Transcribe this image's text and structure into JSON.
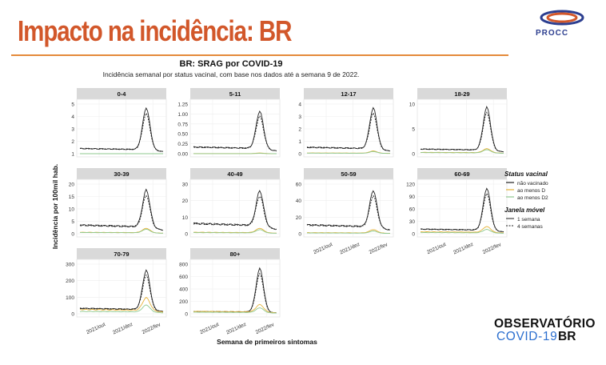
{
  "slide": {
    "title": "Impacto na incidência: BR",
    "logo_text": "PROCC",
    "branding_line1": "OBSERVATÓRIO",
    "branding_line2a": "COVID-19",
    "branding_line2b": "BR",
    "accent_color": "#d2572a"
  },
  "chart_data": {
    "type": "line",
    "title": "BR: SRAG por COVID-19",
    "subtitle": "Incidência semanal por status vacinal, com base nos dados até a semana 9 de 2022.",
    "xlabel": "Semana de primeiros sintomas",
    "ylabel": "Incidência por 100mil hab.",
    "x_ticks": [
      "2021/out",
      "2021/dez",
      "2022/fev"
    ],
    "legend": {
      "position": "right",
      "status_title": "Status vacinal",
      "status_items": [
        {
          "label": "não vacinado",
          "color": "#222222"
        },
        {
          "label": "ao menos D",
          "color": "#e6b33a"
        },
        {
          "label": "ao menos D2",
          "color": "#8fc98f"
        }
      ],
      "window_title": "Janela móvel",
      "window_items": [
        {
          "label": "1 semana",
          "dash": "solid"
        },
        {
          "label": "4 semanas",
          "dash": "dashed"
        }
      ]
    },
    "panels": [
      {
        "label": "0-4",
        "yticks": [
          "5",
          "4",
          "3",
          "2",
          "1"
        ],
        "ymax": 5.8,
        "peak": 5.5,
        "base": 0.6,
        "d1": 0,
        "d2": 0
      },
      {
        "label": "5-11",
        "yticks": [
          "1.25",
          "1.00",
          "0.75",
          "0.50",
          "0.25",
          "0.00"
        ],
        "ymax": 1.35,
        "peak": 1.2,
        "base": 0.18,
        "d1": 0.02,
        "d2": 0.01
      },
      {
        "label": "12-17",
        "yticks": [
          "4",
          "3",
          "2",
          "1",
          "0"
        ],
        "ymax": 4.3,
        "peak": 4.1,
        "base": 0.55,
        "d1": 0.25,
        "d2": 0.2
      },
      {
        "label": "18-29",
        "yticks": [
          "10",
          "5",
          "0"
        ],
        "ymax": 14,
        "peak": 13.5,
        "base": 1.3,
        "d1": 1.5,
        "d2": 1.2
      },
      {
        "label": "30-39",
        "yticks": [
          "20",
          "15",
          "10",
          "5",
          "0"
        ],
        "ymax": 26,
        "peak": 24,
        "base": 4.5,
        "d1": 3,
        "d2": 2.5
      },
      {
        "label": "40-49",
        "yticks": [
          "30",
          "20",
          "10",
          "0"
        ],
        "ymax": 34,
        "peak": 31,
        "base": 7,
        "d1": 4,
        "d2": 3
      },
      {
        "label": "50-59",
        "yticks": [
          "60",
          "40",
          "20",
          "0"
        ],
        "ymax": 68,
        "peak": 62,
        "base": 12,
        "d1": 6,
        "d2": 4
      },
      {
        "label": "60-69",
        "yticks": [
          "120",
          "90",
          "60",
          "30",
          "0"
        ],
        "ymax": 130,
        "peak": 122,
        "base": 12,
        "d1": 20,
        "d2": 12
      },
      {
        "label": "70-79",
        "yticks": [
          "300",
          "200",
          "100",
          "0"
        ],
        "ymax": 320,
        "peak": 290,
        "base": 35,
        "d1": 110,
        "d2": 60
      },
      {
        "label": "80+",
        "yticks": [
          "800",
          "600",
          "400",
          "200",
          "0"
        ],
        "ymax": 860,
        "peak": 800,
        "base": 40,
        "d1": 170,
        "d2": 110
      }
    ]
  }
}
